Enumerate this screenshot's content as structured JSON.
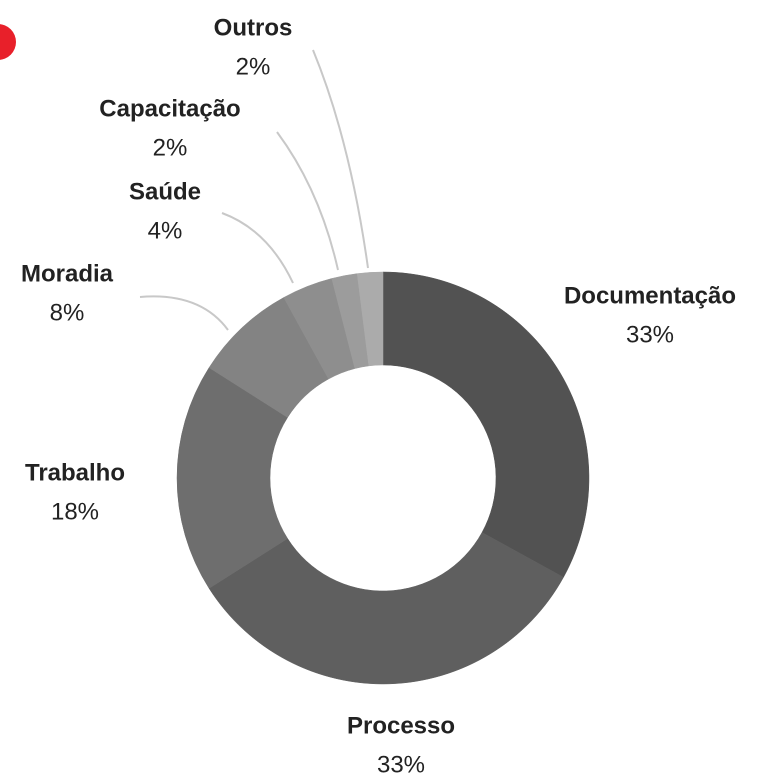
{
  "chart_data": {
    "type": "donut",
    "categories": [
      "Documentação",
      "Processo",
      "Trabalho",
      "Moradia",
      "Saúde",
      "Capacitação",
      "Outros"
    ],
    "values": [
      33,
      33,
      18,
      8,
      4,
      2,
      2
    ],
    "value_labels": [
      "33%",
      "33%",
      "18%",
      "8%",
      "4%",
      "2%",
      "2%"
    ],
    "colors": [
      "#525252",
      "#5f5f5f",
      "#6e6e6e",
      "#838383",
      "#8e8e8e",
      "#9c9c9c",
      "#ababab"
    ]
  }
}
